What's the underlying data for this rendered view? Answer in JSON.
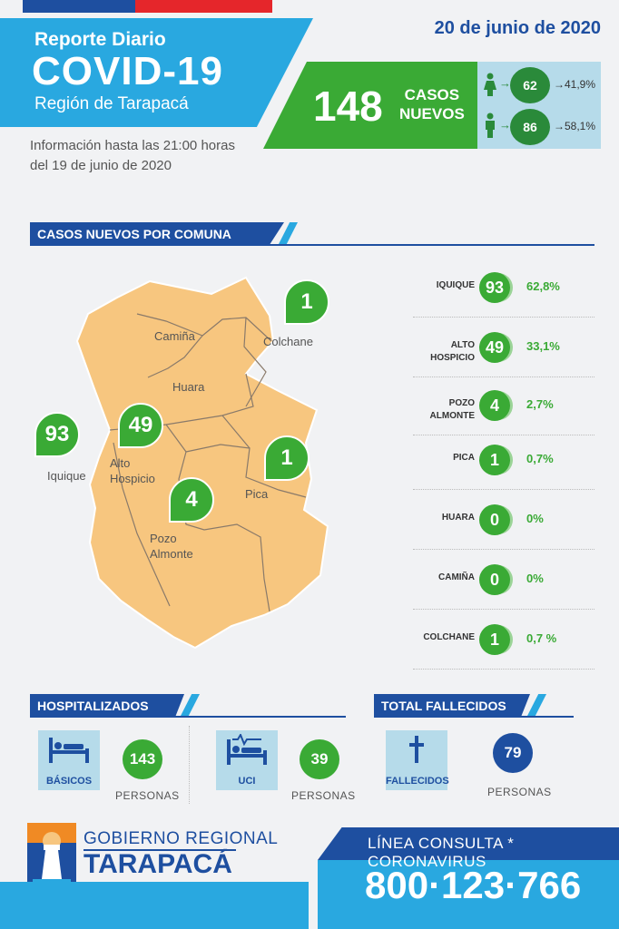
{
  "header": {
    "date": "20 de junio de 2020",
    "title_small": "Reporte Diario",
    "title_big": "COVID-19",
    "region": "Región de Tarapacá",
    "info_line1": "Información hasta las 21:00 horas",
    "info_line2": "del 19 de junio de 2020"
  },
  "new_cases": {
    "value": "148",
    "label_line1": "CASOS",
    "label_line2": "NUEVOS",
    "female": {
      "value": "62",
      "pct": "41,9%"
    },
    "male": {
      "value": "86",
      "pct": "58,1%"
    }
  },
  "comuna_section": {
    "title": "CASOS NUEVOS POR COMUNA"
  },
  "map": {
    "labels": {
      "camina": "Camiña",
      "colchane": "Colchane",
      "huara": "Huara",
      "iquique": "Iquique",
      "alto_hospicio_1": "Alto",
      "alto_hospicio_2": "Hospicio",
      "pica": "Pica",
      "pozo_1": "Pozo",
      "pozo_2": "Almonte"
    },
    "pins": {
      "colchane": "1",
      "alto_hospicio": "49",
      "iquique": "93",
      "pica": "1",
      "pozo": "4"
    },
    "fill_color": "#f7c67f"
  },
  "comunas": [
    {
      "name1": "IQUIQUE",
      "name2": "",
      "value": "93",
      "pct": "62,8%"
    },
    {
      "name1": "ALTO",
      "name2": "HOSPICIO",
      "value": "49",
      "pct": "33,1%"
    },
    {
      "name1": "POZO",
      "name2": "ALMONTE",
      "value": "4",
      "pct": "2,7%"
    },
    {
      "name1": "PICA",
      "name2": "",
      "value": "1",
      "pct": "0,7%"
    },
    {
      "name1": "HUARA",
      "name2": "",
      "value": "0",
      "pct": "0%"
    },
    {
      "name1": "CAMIÑA",
      "name2": "",
      "value": "0",
      "pct": "0%"
    },
    {
      "name1": "COLCHANE",
      "name2": "",
      "value": "1",
      "pct": "0,7 %"
    }
  ],
  "hospitalizados": {
    "title": "HOSPITALIZADOS",
    "basicos": {
      "label": "BÁSICOS",
      "value": "143",
      "unit": "PERSONAS",
      "icon": "hospital-bed-icon"
    },
    "uci": {
      "label": "UCI",
      "value": "39",
      "unit": "PERSONAS",
      "icon": "icu-bed-icon"
    }
  },
  "fallecidos": {
    "title": "TOTAL FALLECIDOS",
    "label": "FALLECIDOS",
    "value": "79",
    "unit": "PERSONAS",
    "icon": "cross-icon"
  },
  "footer": {
    "gob_line1": "GOBIERNO REGIONAL",
    "gob_line2": "TARAPACÁ",
    "linea": "LÍNEA CONSULTA * CORONAVIRUS",
    "phone": "800·123·766"
  },
  "colors": {
    "dark_blue": "#1e4fa0",
    "light_blue": "#29a8e0",
    "green": "#3aaa35",
    "dark_green": "#2a8a3a",
    "red": "#e5262b"
  }
}
